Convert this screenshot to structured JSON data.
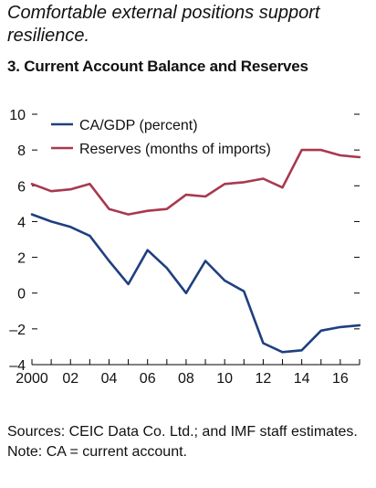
{
  "subtitle": "Comfortable external positions support resilience.",
  "title": "3. Current Account Balance and Reserves",
  "footer": {
    "sources": "Sources: CEIC Data Co. Ltd.; and IMF staff estimates.",
    "note": "Note: CA = current account."
  },
  "colors": {
    "ca": "#1f3f7f",
    "reserves": "#a8394f",
    "axis": "#000000"
  },
  "chart_data": {
    "type": "line",
    "x": [
      2000,
      2001,
      2002,
      2003,
      2004,
      2005,
      2006,
      2007,
      2008,
      2009,
      2010,
      2011,
      2012,
      2013,
      2014,
      2015,
      2016,
      2017
    ],
    "xticks": [
      {
        "value": 2000,
        "label": "2000"
      },
      {
        "value": 2002,
        "label": "02"
      },
      {
        "value": 2004,
        "label": "04"
      },
      {
        "value": 2006,
        "label": "06"
      },
      {
        "value": 2008,
        "label": "08"
      },
      {
        "value": 2010,
        "label": "10"
      },
      {
        "value": 2012,
        "label": "12"
      },
      {
        "value": 2014,
        "label": "14"
      },
      {
        "value": 2016,
        "label": "16"
      }
    ],
    "yticks": [
      10,
      8,
      6,
      4,
      2,
      0,
      -2,
      -4
    ],
    "ytick_labels": [
      "10",
      "8",
      "6",
      "4",
      "2",
      "0",
      "–2",
      "–4"
    ],
    "xlim": [
      2000,
      2017
    ],
    "ylim": [
      -4,
      10
    ],
    "grid": false,
    "legend_position": "top-left",
    "series": [
      {
        "name": "CA/GDP (percent)",
        "color": "#1f3f7f",
        "values": [
          4.4,
          4.0,
          3.7,
          3.2,
          1.8,
          0.5,
          2.4,
          1.4,
          0.0,
          1.8,
          0.7,
          0.1,
          -2.8,
          -3.3,
          -3.2,
          -2.1,
          -1.9,
          -1.8
        ]
      },
      {
        "name": "Reserves (months of imports)",
        "color": "#a8394f",
        "values": [
          6.1,
          5.7,
          5.8,
          6.1,
          4.7,
          4.4,
          4.6,
          4.7,
          5.5,
          5.4,
          6.1,
          6.2,
          6.4,
          5.9,
          8.0,
          8.0,
          7.7,
          7.6
        ]
      }
    ]
  }
}
